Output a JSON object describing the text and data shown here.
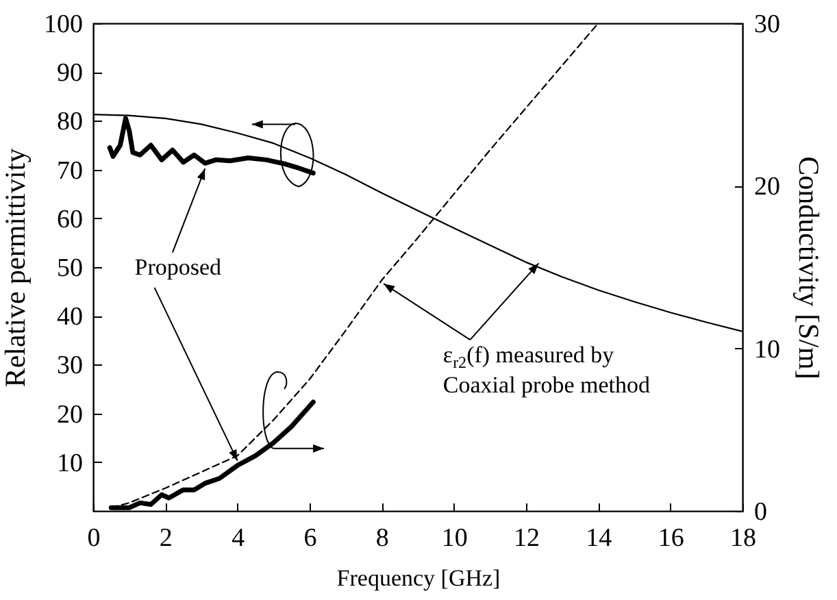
{
  "chart_data": {
    "type": "line",
    "xlabel": "Frequency [GHz]",
    "ylabel": "Relative permittivity",
    "y2label": "Conductivity [S/m]",
    "xlim": [
      0,
      18
    ],
    "xticks": [
      0,
      2,
      4,
      6,
      8,
      10,
      12,
      14,
      16,
      18
    ],
    "ylim": [
      0,
      100
    ],
    "yticks": [
      10,
      20,
      30,
      40,
      50,
      60,
      70,
      80,
      90,
      100
    ],
    "y2lim": [
      0,
      30
    ],
    "y2ticks": [
      0,
      10,
      20,
      30
    ],
    "annotations": [
      {
        "text": "Proposed",
        "x": 3.1,
        "y": 70.2
      },
      {
        "text": "ε$_{r2}$(f) measured by",
        "x": 12.35,
        "y": 50.8
      },
      "Coaxial probe method"
    ],
    "series": [
      {
        "color": "#000000",
        "line_style": "solid",
        "x": [
          0,
          1,
          2,
          3,
          4,
          5,
          6,
          7,
          8,
          9,
          10,
          11,
          12,
          13,
          14,
          15,
          16,
          17,
          18
        ],
        "values": [
          81.3,
          81.1,
          80.5,
          79.3,
          77.5,
          75.4,
          72.4,
          69,
          65.2,
          61.6,
          58,
          54.5,
          51,
          48,
          45.3,
          42.9,
          40.7,
          38.7,
          36.8
        ]
      },
      {
        "color": "#000000",
        "line_style": "dashed",
        "axis": "y2",
        "x": [
          0.5,
          1,
          2,
          3,
          4,
          5,
          6,
          7,
          8,
          9,
          10,
          11,
          12,
          13,
          14
        ],
        "values": [
          0.2,
          0.5,
          1.4,
          2.4,
          3.4,
          5.6,
          8.1,
          11.1,
          14.2,
          16.8,
          19.5,
          22.2,
          24.8,
          27.4,
          30
        ]
      },
      {
        "color": "#000000",
        "line_style": "solid",
        "x": [
          0.46,
          0.55,
          0.75,
          0.9,
          1.0,
          1.1,
          1.3,
          1.6,
          1.9,
          2.2,
          2.5,
          2.8,
          3.1,
          3.4,
          3.8,
          4.3,
          4.8,
          5.3,
          5.7,
          6.1
        ],
        "values": [
          74.5,
          72.7,
          75,
          80.5,
          78,
          73.5,
          73,
          75,
          72,
          74,
          71.5,
          73,
          71.3,
          72,
          71.8,
          72.4,
          72,
          71.2,
          70.3,
          69.3
        ]
      },
      {
        "color": "#000000",
        "line_style": "solid",
        "axis": "y2",
        "x": [
          0.5,
          1,
          1.3,
          1.6,
          1.9,
          2.1,
          2.5,
          2.8,
          3.1,
          3.5,
          4,
          4.5,
          5,
          5.5,
          6.1
        ],
        "values": [
          0.2,
          0.2,
          0.5,
          0.4,
          1.0,
          0.8,
          1.3,
          1.3,
          1.7,
          2.0,
          2.8,
          3.4,
          4.2,
          5.2,
          6.7
        ]
      }
    ]
  }
}
